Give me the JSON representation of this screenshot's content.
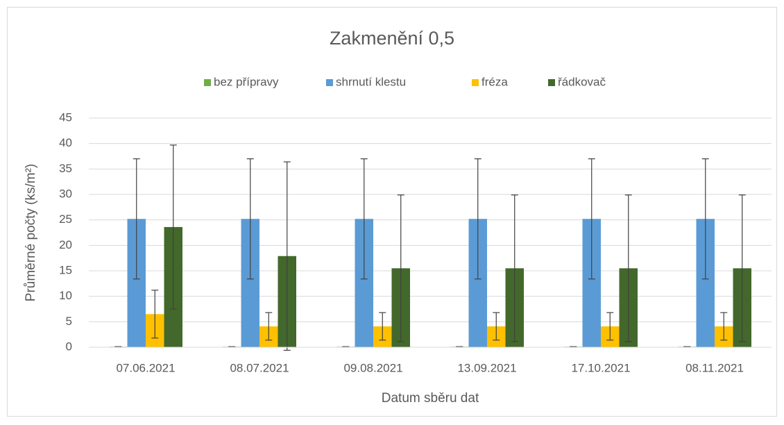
{
  "chart_data": {
    "type": "bar",
    "title": "Zakmenění 0,5",
    "x_label": "Datum sběru dat",
    "y_label": "Průměrné počty (ks/m²)",
    "categories": [
      "07.06.2021",
      "08.07.2021",
      "09.08.2021",
      "13.09.2021",
      "17.10.2021",
      "08.11.2021"
    ],
    "series": [
      {
        "name": "bez přípravy",
        "color": "#70ad47",
        "values": [
          0.1,
          0.1,
          0.1,
          0.1,
          0.1,
          0.1
        ],
        "errors": [
          0,
          0,
          0,
          0,
          0,
          0
        ]
      },
      {
        "name": "shrnutí klestu",
        "color": "#5b9bd5",
        "values": [
          25.2,
          25.2,
          25.2,
          25.2,
          25.2,
          25.2
        ],
        "errors": [
          11.8,
          11.8,
          11.8,
          11.8,
          11.8,
          11.8
        ]
      },
      {
        "name": "fréza",
        "color": "#ffc000",
        "values": [
          6.5,
          4.1,
          4.1,
          4.1,
          4.1,
          4.1
        ],
        "errors": [
          4.7,
          2.7,
          2.7,
          2.7,
          2.7,
          2.7
        ]
      },
      {
        "name": "řádkovač",
        "color": "#43682b",
        "values": [
          23.6,
          17.9,
          15.5,
          15.5,
          15.5,
          15.5
        ],
        "errors": [
          16.1,
          18.5,
          14.4,
          14.4,
          14.4,
          14.4
        ]
      }
    ],
    "ylim": [
      0,
      45
    ],
    "yticks": [
      0,
      5,
      10,
      15,
      20,
      25,
      30,
      35,
      40,
      45
    ],
    "grid": true,
    "legend": "top"
  }
}
